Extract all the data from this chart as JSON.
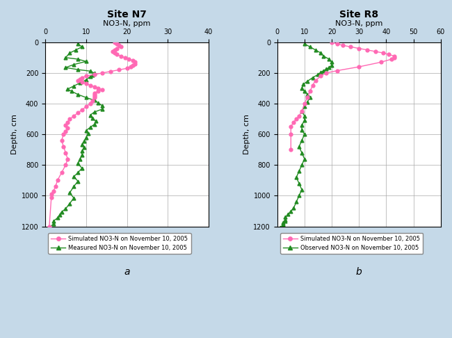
{
  "site_n7": {
    "title": "Site N7",
    "xlabel": "NO3-N, ppm",
    "ylabel": "Depth, cm",
    "xlim": [
      0,
      40
    ],
    "ylim": [
      1200,
      0
    ],
    "xticks": [
      0,
      10,
      20,
      30,
      40
    ],
    "yticks": [
      0,
      200,
      400,
      600,
      800,
      1000,
      1200
    ],
    "label_letter": "a",
    "simulated_label": "Simulated NO3-N on November 10, 2005",
    "measured_label": "Measured NO3-N on November 10, 2005",
    "simulated_color": "#FF69B4",
    "measured_color": "#228B22",
    "sim_x": [
      17,
      17.5,
      18,
      18.5,
      17.5,
      17,
      16.5,
      17,
      17.5,
      18.5,
      19.5,
      20.5,
      21.5,
      22,
      22,
      21.5,
      21,
      20,
      18,
      16,
      14,
      12,
      10,
      9,
      8.5,
      8,
      9,
      10,
      11,
      12,
      13,
      14,
      13,
      12,
      12,
      12,
      12,
      11.5,
      11,
      10,
      9,
      8,
      7,
      6,
      5.5,
      5,
      5.5,
      5,
      4.5,
      4,
      4.5,
      5,
      5.5,
      5,
      4,
      3,
      2.5,
      2,
      1.5,
      1.5,
      1
    ],
    "sim_y": [
      0,
      10,
      20,
      30,
      40,
      50,
      60,
      70,
      80,
      90,
      100,
      110,
      120,
      130,
      140,
      150,
      160,
      170,
      180,
      190,
      200,
      210,
      220,
      230,
      240,
      250,
      260,
      270,
      280,
      290,
      300,
      310,
      320,
      330,
      340,
      350,
      360,
      380,
      400,
      420,
      440,
      460,
      480,
      500,
      520,
      540,
      560,
      580,
      600,
      640,
      680,
      720,
      760,
      800,
      850,
      900,
      940,
      970,
      990,
      1010,
      1200
    ],
    "meas_x": [
      8,
      9,
      7.5,
      6,
      5,
      8,
      10,
      7,
      5,
      8,
      11,
      12,
      11.5,
      11,
      10,
      8.5,
      7,
      5.5,
      6.5,
      8,
      10,
      12,
      13,
      14,
      14,
      12,
      11,
      11.5,
      12.5,
      12,
      11,
      10,
      10.5,
      10,
      9.5,
      9,
      9.5,
      9,
      9,
      8.5,
      8,
      9,
      8,
      7,
      8,
      7,
      6,
      7,
      6,
      5,
      4,
      3.5,
      3,
      2,
      2,
      1,
      1,
      1
    ],
    "meas_y": [
      10,
      30,
      50,
      70,
      100,
      110,
      125,
      145,
      165,
      178,
      188,
      200,
      212,
      225,
      245,
      265,
      285,
      305,
      320,
      340,
      360,
      378,
      395,
      415,
      435,
      455,
      475,
      495,
      515,
      535,
      555,
      575,
      595,
      620,
      645,
      665,
      685,
      710,
      735,
      760,
      790,
      820,
      850,
      875,
      905,
      940,
      980,
      1015,
      1050,
      1085,
      1105,
      1125,
      1145,
      1165,
      1185,
      1205,
      1215,
      1220
    ]
  },
  "site_r8": {
    "title": "Site R8",
    "xlabel": "NO3-N, ppm",
    "ylabel": "Depth, cm",
    "xlim": [
      0,
      60
    ],
    "ylim": [
      1200,
      0
    ],
    "xticks": [
      0,
      10,
      20,
      30,
      40,
      50,
      60
    ],
    "yticks": [
      0,
      200,
      400,
      600,
      800,
      1000,
      1200
    ],
    "label_letter": "b",
    "simulated_label": "Simulated NO3-N on November 10, 2005",
    "observed_label": "Observed NO3-N on November 10, 2005",
    "simulated_color": "#FF69B4",
    "observed_color": "#228B22",
    "sim_x": [
      20,
      22,
      24,
      27,
      30,
      33,
      36,
      39,
      41,
      43,
      43,
      42,
      38,
      30,
      22,
      18,
      16,
      14,
      13,
      12,
      11,
      10,
      9,
      8,
      7,
      6,
      5,
      5,
      5
    ],
    "sim_y": [
      0,
      10,
      20,
      30,
      40,
      50,
      60,
      70,
      80,
      90,
      100,
      110,
      130,
      160,
      185,
      200,
      220,
      250,
      280,
      320,
      360,
      400,
      450,
      480,
      500,
      520,
      550,
      600,
      700
    ],
    "obs_x": [
      10,
      12,
      14,
      16,
      17,
      19,
      20,
      20,
      19,
      18,
      17,
      16,
      15,
      13,
      11,
      9.5,
      9,
      10,
      11,
      12,
      11,
      10,
      9,
      10,
      10,
      9,
      9,
      10,
      9,
      8,
      9,
      10,
      9,
      8,
      7,
      8,
      9,
      8,
      7,
      6,
      5,
      4,
      3,
      3,
      3,
      2,
      2,
      2,
      2,
      2,
      1,
      1,
      1,
      1,
      1
    ],
    "obs_y": [
      10,
      30,
      50,
      70,
      90,
      110,
      130,
      150,
      165,
      175,
      185,
      195,
      210,
      230,
      255,
      275,
      300,
      320,
      340,
      360,
      390,
      420,
      450,
      480,
      510,
      540,
      570,
      600,
      640,
      680,
      720,
      760,
      800,
      840,
      880,
      920,
      960,
      1000,
      1040,
      1080,
      1100,
      1120,
      1140,
      1155,
      1165,
      1175,
      1185,
      1190,
      1195,
      1200,
      1205,
      1210,
      1215,
      1220,
      1225
    ]
  },
  "bg_color": "#C5D9E8",
  "panel_bg": "#FFFFFF",
  "grid_color": "#AAAAAA",
  "tick_fontsize": 7,
  "axis_label_fontsize": 8,
  "title_fontsize": 10
}
